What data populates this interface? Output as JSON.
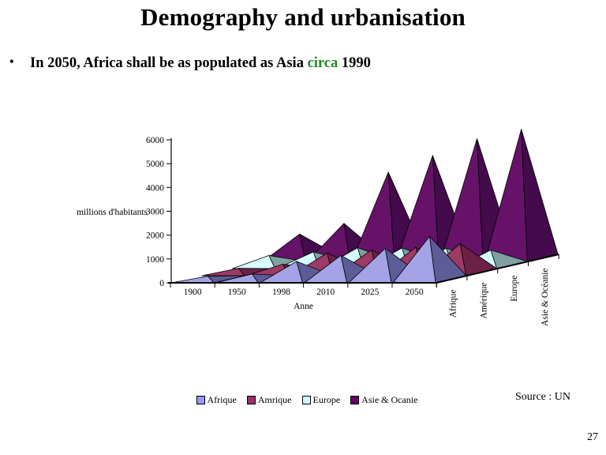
{
  "slide": {
    "title": "Demography and urbanisation",
    "bullet": {
      "marker": "•",
      "pre": "In 2050, Africa shall be as populated as Asia ",
      "highlight": "circa",
      "post": " 1990",
      "highlight_color": "#1E8C1E"
    },
    "source": "Source : UN",
    "page_number": "27"
  },
  "chart_data": {
    "type": "bar",
    "variant": "3d-pyramid",
    "title": "",
    "xlabel": "Anne",
    "ylabel": "millions d'habitants",
    "x_categories": [
      "1900",
      "1950",
      "1998",
      "2010",
      "2025",
      "2050"
    ],
    "series_axis_labels": [
      "Afrique",
      "Amérique",
      "Europe",
      "Asie & Océanie"
    ],
    "ylim": [
      0,
      6000
    ],
    "ytick_step": 1000,
    "grid": false,
    "legend_position": "bottom",
    "series": [
      {
        "name": "Afrique",
        "legend_label": "Afrique",
        "legend_color": "#9999FF",
        "face_color": "#A3A3E6",
        "side_color": "#5C5C99",
        "values": [
          130,
          220,
          750,
          1000,
          1300,
          1800
        ]
      },
      {
        "name": "Amérique",
        "legend_label": "Amrique",
        "legend_color": "#993366",
        "face_color": "#9E3A66",
        "side_color": "#6B2145",
        "values": [
          160,
          330,
          800,
          930,
          1050,
          1200
        ]
      },
      {
        "name": "Europe",
        "legend_label": "Europe",
        "legend_color": "#CCFFFF",
        "face_color": "#D6FFFF",
        "side_color": "#7FA0A0",
        "values": [
          400,
          550,
          730,
          720,
          710,
          630
        ]
      },
      {
        "name": "Asie & Océanie",
        "legend_label": "Asie & Ocanie",
        "legend_color": "#660066",
        "face_color": "#671269",
        "side_color": "#430B4B",
        "values": [
          1000,
          1450,
          3600,
          4300,
          5000,
          5400
        ]
      }
    ]
  }
}
